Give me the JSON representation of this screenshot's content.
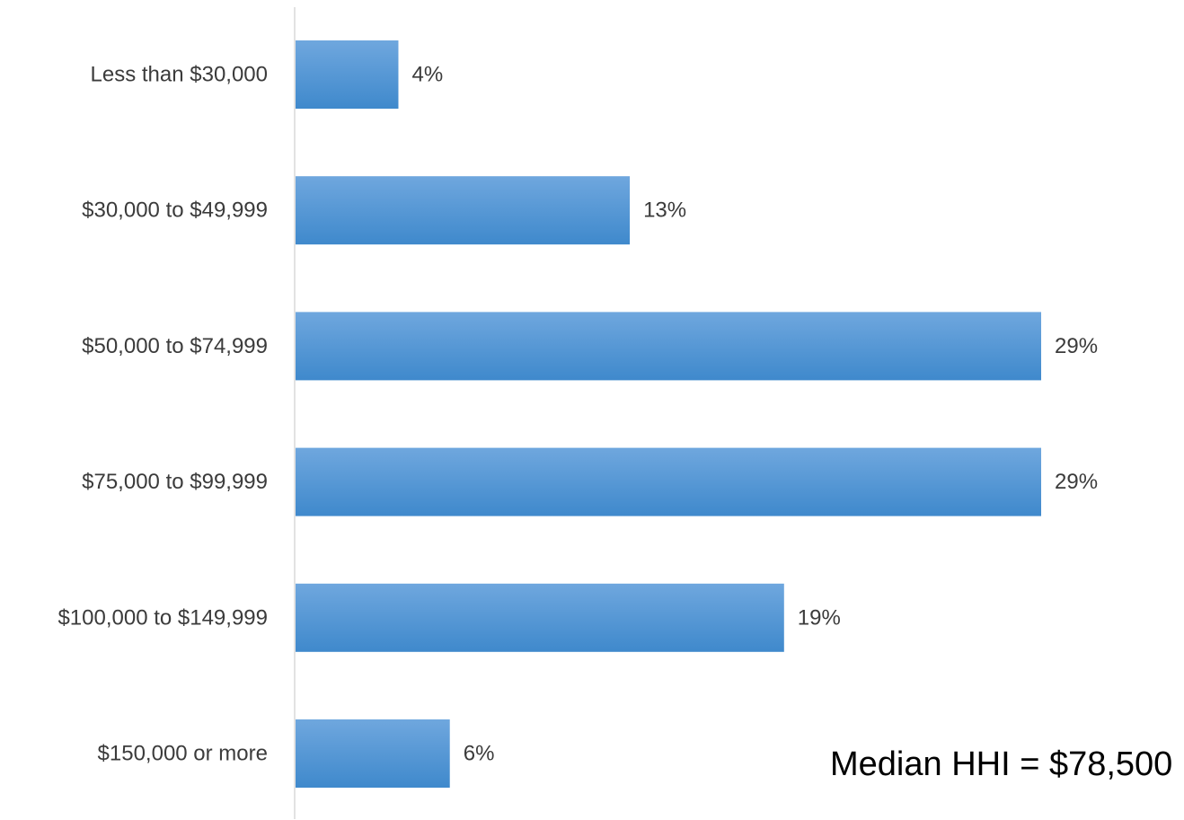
{
  "chart_data": {
    "type": "bar",
    "orientation": "horizontal",
    "categories": [
      "Less than $30,000",
      "$30,000 to $49,999",
      "$50,000 to $74,999",
      "$75,000 to $99,999",
      "$100,000 to $149,999",
      "$150,000 or more"
    ],
    "values": [
      4,
      13,
      29,
      29,
      19,
      6
    ],
    "value_labels": [
      "4%",
      "13%",
      "29%",
      "29%",
      "19%",
      "6%"
    ],
    "unit": "%",
    "xlim": [
      0,
      30
    ],
    "grid": false,
    "legend": "none",
    "colors": {
      "bar_top": "#6fa7de",
      "bar_bottom": "#3f89cc",
      "axis": "#d9d9d9",
      "text": "#3b3b3b"
    }
  },
  "annotation": {
    "median_text": "Median HHI = $78,500"
  }
}
